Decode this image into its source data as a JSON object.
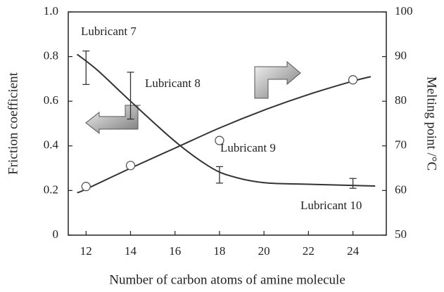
{
  "chart_data": {
    "type": "line",
    "x_label": "Number of carbon atoms of amine molecule",
    "y_label": "Friction coefficient",
    "y2_label": "Melting point /°C",
    "xlim": [
      11.2,
      25.5
    ],
    "xticks": [
      12,
      14,
      16,
      18,
      20,
      22,
      24
    ],
    "ylim": [
      0,
      1
    ],
    "yticks": [
      0,
      0.2,
      0.4,
      0.6,
      0.8,
      {
        "value": 1,
        "label": "1.0"
      }
    ],
    "y2lim": [
      50,
      100
    ],
    "y2ticks": [
      50,
      60,
      70,
      80,
      90,
      100
    ],
    "series": [
      {
        "type": "line",
        "color": "#333333",
        "x": [
          11.6,
          12.5,
          14,
          16,
          17.5,
          18.5,
          20,
          22,
          25
        ],
        "values": [
          0.81,
          0.74,
          0.6,
          0.42,
          0.31,
          0.265,
          0.235,
          0.228,
          0.22
        ]
      },
      {
        "type": "line",
        "axis": "y2",
        "color": "#333333",
        "x": [
          11.6,
          12,
          14,
          16,
          18,
          20,
          22,
          24,
          24.8
        ],
        "values": [
          59.5,
          60.3,
          65,
          69.5,
          74,
          78,
          81.5,
          84.5,
          85.5
        ]
      },
      {
        "type": "errorbar",
        "color": "#333333",
        "x": [
          12,
          14,
          18,
          24
        ],
        "values": [
          0.75,
          0.625,
          0.27,
          0.232
        ],
        "errors": [
          0.075,
          0.105,
          0.037,
          0.022
        ]
      },
      {
        "type": "scatter",
        "axis": "y2",
        "color": "#555555",
        "x": [
          12,
          14,
          18,
          24
        ],
        "values": [
          60.9,
          65.6,
          71.2,
          84.8
        ]
      }
    ],
    "annotations": [
      "Lubricant 7",
      "Lubricant 8",
      "Lubricant 9",
      "Lubricant 10"
    ]
  }
}
